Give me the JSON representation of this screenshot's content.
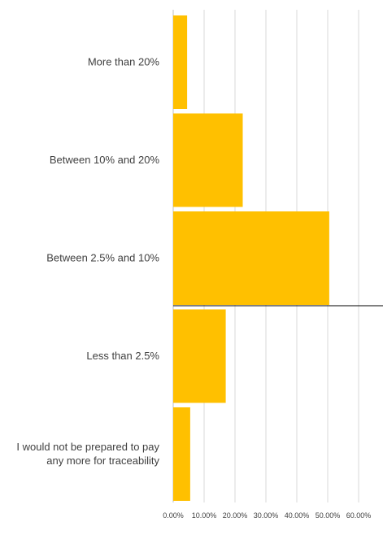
{
  "chart_data": {
    "type": "bar",
    "orientation": "horizontal",
    "categories": [
      [
        "More than 20%"
      ],
      [
        "Between 10% and 20%"
      ],
      [
        "Between 2.5% and 10%"
      ],
      [
        "Less than 2.5%"
      ],
      [
        "I would not be prepared to pay",
        "any more for traceability"
      ]
    ],
    "values": [
      4.5,
      22.5,
      50.5,
      17.0,
      5.5
    ],
    "xlim": [
      0,
      60
    ],
    "xticks": [
      "0.00%",
      "10.00%",
      "20.00%",
      "30.00%",
      "40.00%",
      "50.00%",
      "60.00%"
    ],
    "grid": true,
    "bar_color": "#FFC000",
    "gridline_color": "#D9D9D9",
    "text_color": "#404040",
    "title": "",
    "xlabel": "",
    "ylabel": ""
  }
}
